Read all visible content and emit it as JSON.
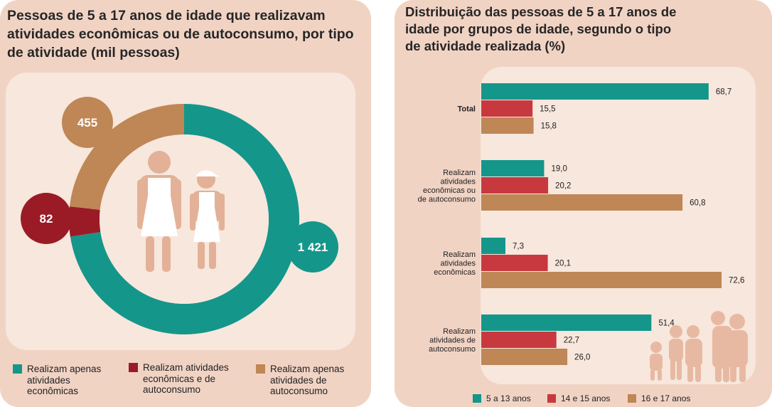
{
  "colors": {
    "teal": "#15968a",
    "dark_red": "#9a1b26",
    "red": "#c8393f",
    "tan": "#bf8656",
    "panel": "#f1d3c4",
    "inner": "#f7e7dd"
  },
  "left_chart": {
    "title": "Pessoas de 5 a 17 anos de idade que realizavam atividades econômicas ou de autoconsumo, por tipo de atividade (mil pessoas)",
    "labels": {
      "economic_only": "1 421",
      "both": "82",
      "subsistence_only": "455"
    },
    "legend": [
      {
        "label": "Realizam apenas\natividades\neconômicas",
        "color": "#15968a"
      },
      {
        "label": "Realizam atividades\neconômicas e de\nautoconsumo",
        "color": "#9a1b26"
      },
      {
        "label": "Realizam apenas\natividades de\nautoconsumo",
        "color": "#bf8656"
      }
    ]
  },
  "right_chart": {
    "title": "Distribuição das pessoas de 5 a 17 anos de\nidade por grupos de idade, segundo o tipo\nde atividade realizada (%)",
    "legend": [
      {
        "label": "5 a 13 anos",
        "color": "#15968a"
      },
      {
        "label": "14 e 15 anos",
        "color": "#c8393f"
      },
      {
        "label": "16 e 17 anos",
        "color": "#bf8656"
      }
    ]
  },
  "chart_data": [
    {
      "type": "pie",
      "title": "Pessoas de 5 a 17 anos de idade que realizavam atividades econômicas ou de autoconsumo, por tipo de atividade (mil pessoas)",
      "categories": [
        "Realizam apenas atividades econômicas",
        "Realizam atividades econômicas e de autoconsumo",
        "Realizam apenas atividades de autoconsumo"
      ],
      "values": [
        1421,
        82,
        455
      ]
    },
    {
      "type": "bar",
      "orientation": "horizontal",
      "title": "Distribuição das pessoas de 5 a 17 anos de idade por grupos de idade, segundo o tipo de atividade realizada (%)",
      "categories": [
        "Total",
        "Realizam atividades econômicas ou de autoconsumo",
        "Realizam atividades econômicas",
        "Realizam atividades de autoconsumo"
      ],
      "category_labels": [
        "Total",
        "Realizam\natividades\neconômicas ou\nde autoconsumo",
        "Realizam\natividades\neconômicas",
        "Realizam\natividades de\nautoconsumo"
      ],
      "series": [
        {
          "name": "5 a 13 anos",
          "values": [
            68.7,
            19.0,
            7.3,
            51.4
          ],
          "labels": [
            "68,7",
            "19,0",
            "7,3",
            "51,4"
          ]
        },
        {
          "name": "14 e 15 anos",
          "values": [
            15.5,
            20.2,
            20.1,
            22.7
          ],
          "labels": [
            "15,5",
            "20,2",
            "20,1",
            "22,7"
          ]
        },
        {
          "name": "16 e 17 anos",
          "values": [
            15.8,
            60.8,
            72.6,
            26.0
          ],
          "labels": [
            "15,8",
            "60,8",
            "72,6",
            "26,0"
          ]
        }
      ],
      "xlim": [
        0,
        100
      ],
      "legend_position": "bottom"
    }
  ]
}
